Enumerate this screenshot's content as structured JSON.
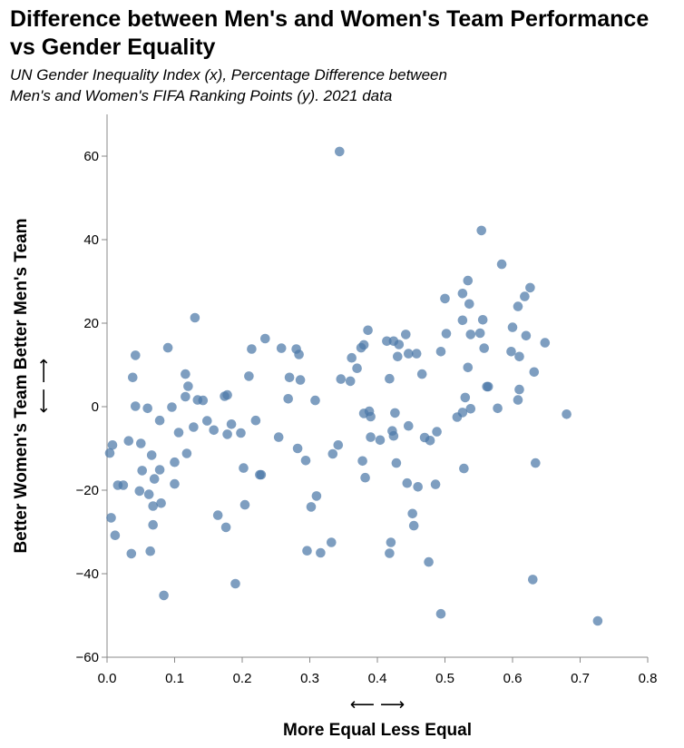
{
  "chart_data": {
    "type": "scatter",
    "title": [
      "Difference between Men's and Women's Team Performance",
      "vs Gender Equality"
    ],
    "subtitle": [
      "UN Gender Inequality Index (x), Percentage Difference between",
      "Men's and Women's FIFA Ranking Points (y). 2021 data"
    ],
    "xlabel": {
      "arrows": "⟵ ⟶",
      "text": "More Equal Less Equal"
    },
    "ylabel": {
      "arrows": "⟵ ⟶",
      "text": "Better Women's Team Better Men's Team"
    },
    "xlim": [
      0,
      0.8
    ],
    "ylim": [
      -60,
      70
    ],
    "xticks": [
      0,
      0.1,
      0.2,
      0.3,
      0.4,
      0.5,
      0.6,
      0.7,
      0.8
    ],
    "xtick_labels": [
      "0.0",
      "0.1",
      "0.2",
      "0.3",
      "0.4",
      "0.5",
      "0.6",
      "0.7",
      "0.8"
    ],
    "yticks": [
      -60,
      -40,
      -20,
      0,
      20,
      40,
      60
    ],
    "ytick_labels": [
      "−60",
      "−40",
      "−20",
      "0",
      "20",
      "40",
      "60"
    ],
    "grid": false,
    "point_color": "#4c78a8",
    "points": [
      [
        0.004,
        -11.1
      ],
      [
        0.008,
        -9.2
      ],
      [
        0.006,
        -26.6
      ],
      [
        0.012,
        -30.8
      ],
      [
        0.016,
        -18.8
      ],
      [
        0.024,
        -18.8
      ],
      [
        0.032,
        -8.2
      ],
      [
        0.036,
        -35.2
      ],
      [
        0.038,
        7.0
      ],
      [
        0.042,
        12.3
      ],
      [
        0.042,
        0.1
      ],
      [
        0.048,
        -20.2
      ],
      [
        0.05,
        -8.8
      ],
      [
        0.052,
        -15.3
      ],
      [
        0.06,
        -0.4
      ],
      [
        0.062,
        -21.0
      ],
      [
        0.064,
        -34.6
      ],
      [
        0.066,
        -11.6
      ],
      [
        0.068,
        -28.3
      ],
      [
        0.068,
        -23.8
      ],
      [
        0.07,
        -17.3
      ],
      [
        0.078,
        -15.1
      ],
      [
        0.078,
        -3.3
      ],
      [
        0.08,
        -23.1
      ],
      [
        0.084,
        -45.2
      ],
      [
        0.09,
        14.1
      ],
      [
        0.096,
        -0.1
      ],
      [
        0.1,
        -13.3
      ],
      [
        0.1,
        -18.5
      ],
      [
        0.106,
        -6.2
      ],
      [
        0.116,
        7.8
      ],
      [
        0.116,
        2.4
      ],
      [
        0.118,
        -11.2
      ],
      [
        0.12,
        4.9
      ],
      [
        0.128,
        -4.9
      ],
      [
        0.13,
        21.3
      ],
      [
        0.134,
        1.6
      ],
      [
        0.142,
        1.5
      ],
      [
        0.148,
        -3.4
      ],
      [
        0.158,
        -5.6
      ],
      [
        0.164,
        -26.0
      ],
      [
        0.174,
        2.5
      ],
      [
        0.176,
        -28.9
      ],
      [
        0.178,
        -6.6
      ],
      [
        0.178,
        2.8
      ],
      [
        0.184,
        -4.2
      ],
      [
        0.19,
        -42.4
      ],
      [
        0.198,
        -6.3
      ],
      [
        0.202,
        -14.7
      ],
      [
        0.204,
        -23.5
      ],
      [
        0.21,
        7.3
      ],
      [
        0.214,
        13.8
      ],
      [
        0.22,
        -3.3
      ],
      [
        0.226,
        -16.3
      ],
      [
        0.228,
        -16.3
      ],
      [
        0.234,
        16.3
      ],
      [
        0.254,
        -7.3
      ],
      [
        0.258,
        14.0
      ],
      [
        0.268,
        1.9
      ],
      [
        0.27,
        7.0
      ],
      [
        0.28,
        13.8
      ],
      [
        0.282,
        -10.0
      ],
      [
        0.284,
        12.5
      ],
      [
        0.286,
        6.4
      ],
      [
        0.294,
        -12.9
      ],
      [
        0.296,
        -34.5
      ],
      [
        0.302,
        -24.0
      ],
      [
        0.308,
        1.5
      ],
      [
        0.31,
        -21.4
      ],
      [
        0.316,
        -35.0
      ],
      [
        0.332,
        -32.5
      ],
      [
        0.334,
        -11.3
      ],
      [
        0.342,
        -9.2
      ],
      [
        0.344,
        61.1
      ],
      [
        0.346,
        6.6
      ],
      [
        0.36,
        6.1
      ],
      [
        0.362,
        11.7
      ],
      [
        0.37,
        9.2
      ],
      [
        0.376,
        14.1
      ],
      [
        0.378,
        -13.0
      ],
      [
        0.38,
        -1.6
      ],
      [
        0.38,
        14.8
      ],
      [
        0.382,
        -17.0
      ],
      [
        0.386,
        18.3
      ],
      [
        0.388,
        -1.1
      ],
      [
        0.39,
        -2.4
      ],
      [
        0.39,
        -7.3
      ],
      [
        0.404,
        -8.0
      ],
      [
        0.414,
        15.7
      ],
      [
        0.418,
        6.7
      ],
      [
        0.418,
        -35.1
      ],
      [
        0.42,
        -32.5
      ],
      [
        0.422,
        -5.8
      ],
      [
        0.424,
        -7.0
      ],
      [
        0.424,
        15.7
      ],
      [
        0.426,
        -1.5
      ],
      [
        0.428,
        -13.5
      ],
      [
        0.43,
        12.0
      ],
      [
        0.432,
        14.9
      ],
      [
        0.442,
        17.3
      ],
      [
        0.444,
        -18.3
      ],
      [
        0.446,
        -4.6
      ],
      [
        0.446,
        12.7
      ],
      [
        0.452,
        -25.6
      ],
      [
        0.454,
        -28.5
      ],
      [
        0.458,
        12.7
      ],
      [
        0.46,
        -19.2
      ],
      [
        0.466,
        7.8
      ],
      [
        0.47,
        -7.4
      ],
      [
        0.476,
        -37.2
      ],
      [
        0.478,
        -8.1
      ],
      [
        0.486,
        -18.6
      ],
      [
        0.488,
        -6.0
      ],
      [
        0.494,
        13.2
      ],
      [
        0.494,
        -49.6
      ],
      [
        0.5,
        25.9
      ],
      [
        0.502,
        17.5
      ],
      [
        0.518,
        -2.5
      ],
      [
        0.526,
        -1.4
      ],
      [
        0.526,
        20.7
      ],
      [
        0.526,
        27.1
      ],
      [
        0.528,
        -14.8
      ],
      [
        0.53,
        2.2
      ],
      [
        0.534,
        9.4
      ],
      [
        0.534,
        30.2
      ],
      [
        0.536,
        24.6
      ],
      [
        0.538,
        -0.5
      ],
      [
        0.538,
        17.3
      ],
      [
        0.552,
        17.6
      ],
      [
        0.554,
        42.2
      ],
      [
        0.556,
        20.8
      ],
      [
        0.558,
        14.0
      ],
      [
        0.562,
        4.8
      ],
      [
        0.564,
        4.8
      ],
      [
        0.578,
        -0.4
      ],
      [
        0.584,
        34.1
      ],
      [
        0.598,
        13.2
      ],
      [
        0.6,
        19.0
      ],
      [
        0.608,
        1.6
      ],
      [
        0.608,
        24.0
      ],
      [
        0.61,
        12.0
      ],
      [
        0.61,
        4.1
      ],
      [
        0.618,
        26.4
      ],
      [
        0.62,
        17.0
      ],
      [
        0.626,
        28.5
      ],
      [
        0.63,
        -41.4
      ],
      [
        0.632,
        8.3
      ],
      [
        0.634,
        -13.5
      ],
      [
        0.648,
        15.3
      ],
      [
        0.68,
        -1.8
      ],
      [
        0.726,
        -51.3
      ]
    ]
  }
}
